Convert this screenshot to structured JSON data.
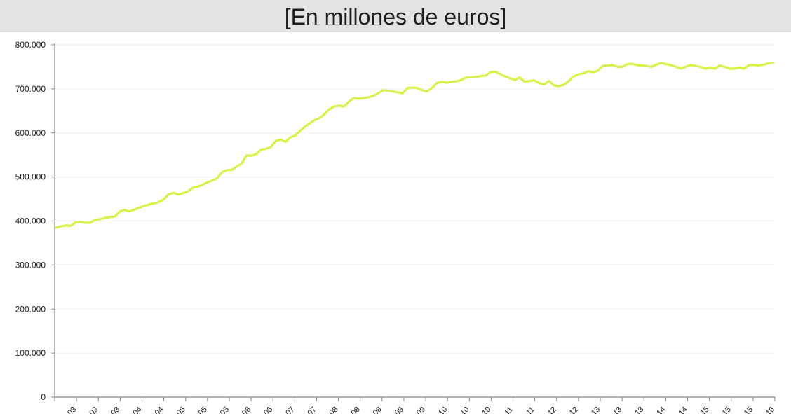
{
  "header": {
    "title": "",
    "subtitle": "[En millones de euros]"
  },
  "chart_data": {
    "type": "line",
    "title": "",
    "subtitle": "[En millones de euros]",
    "xlabel": "",
    "ylabel": "",
    "ylim": [
      0,
      800000
    ],
    "yticks": [
      "0",
      "100.000",
      "200.000",
      "300.000",
      "400.000",
      "500.000",
      "600.000",
      "700.000",
      "800.000"
    ],
    "xtick_labels": [
      "03",
      "03",
      "03",
      "04",
      "04",
      "05",
      "05",
      "05",
      "06",
      "06",
      "07",
      "07",
      "08",
      "08",
      "08",
      "09",
      "09",
      "10",
      "10",
      "10",
      "11",
      "11",
      "12",
      "12",
      "13",
      "13",
      "13",
      "14",
      "14",
      "15",
      "15",
      "15",
      "16"
    ],
    "grid": true,
    "legend": "none",
    "line_color": "#d8f24a",
    "series": [
      {
        "values": [
          385000,
          388000,
          390000,
          389000,
          397000,
          398000,
          396000,
          396000,
          403000,
          404000,
          407000,
          409000,
          410000,
          421000,
          425000,
          422000,
          426000,
          430000,
          434000,
          437000,
          440000,
          443000,
          449000,
          460000,
          464000,
          460000,
          463000,
          467000,
          476000,
          478000,
          482000,
          488000,
          492000,
          497000,
          511000,
          516000,
          516000,
          524000,
          530000,
          549000,
          548000,
          552000,
          562000,
          564000,
          568000,
          582000,
          585000,
          580000,
          590000,
          594000,
          605000,
          614000,
          622000,
          629000,
          634000,
          643000,
          654000,
          660000,
          662000,
          660000,
          671000,
          679000,
          678000,
          679000,
          681000,
          684000,
          690000,
          697000,
          696000,
          694000,
          692000,
          690000,
          702000,
          703000,
          702000,
          697000,
          694000,
          702000,
          713000,
          716000,
          714000,
          716000,
          717000,
          720000,
          726000,
          726000,
          727000,
          729000,
          730000,
          738000,
          739000,
          734000,
          728000,
          724000,
          720000,
          726000,
          716000,
          718000,
          719000,
          713000,
          710000,
          718000,
          708000,
          706000,
          709000,
          717000,
          728000,
          733000,
          735000,
          740000,
          738000,
          741000,
          752000,
          753000,
          754000,
          750000,
          750000,
          756000,
          757000,
          754000,
          753000,
          752000,
          750000,
          755000,
          759000,
          756000,
          754000,
          750000,
          746000,
          750000,
          754000,
          752000,
          750000,
          746000,
          748000,
          746000,
          753000,
          750000,
          746000,
          746000,
          748000,
          746000,
          754000,
          754000,
          753000,
          755000,
          758000,
          760000
        ]
      }
    ]
  }
}
